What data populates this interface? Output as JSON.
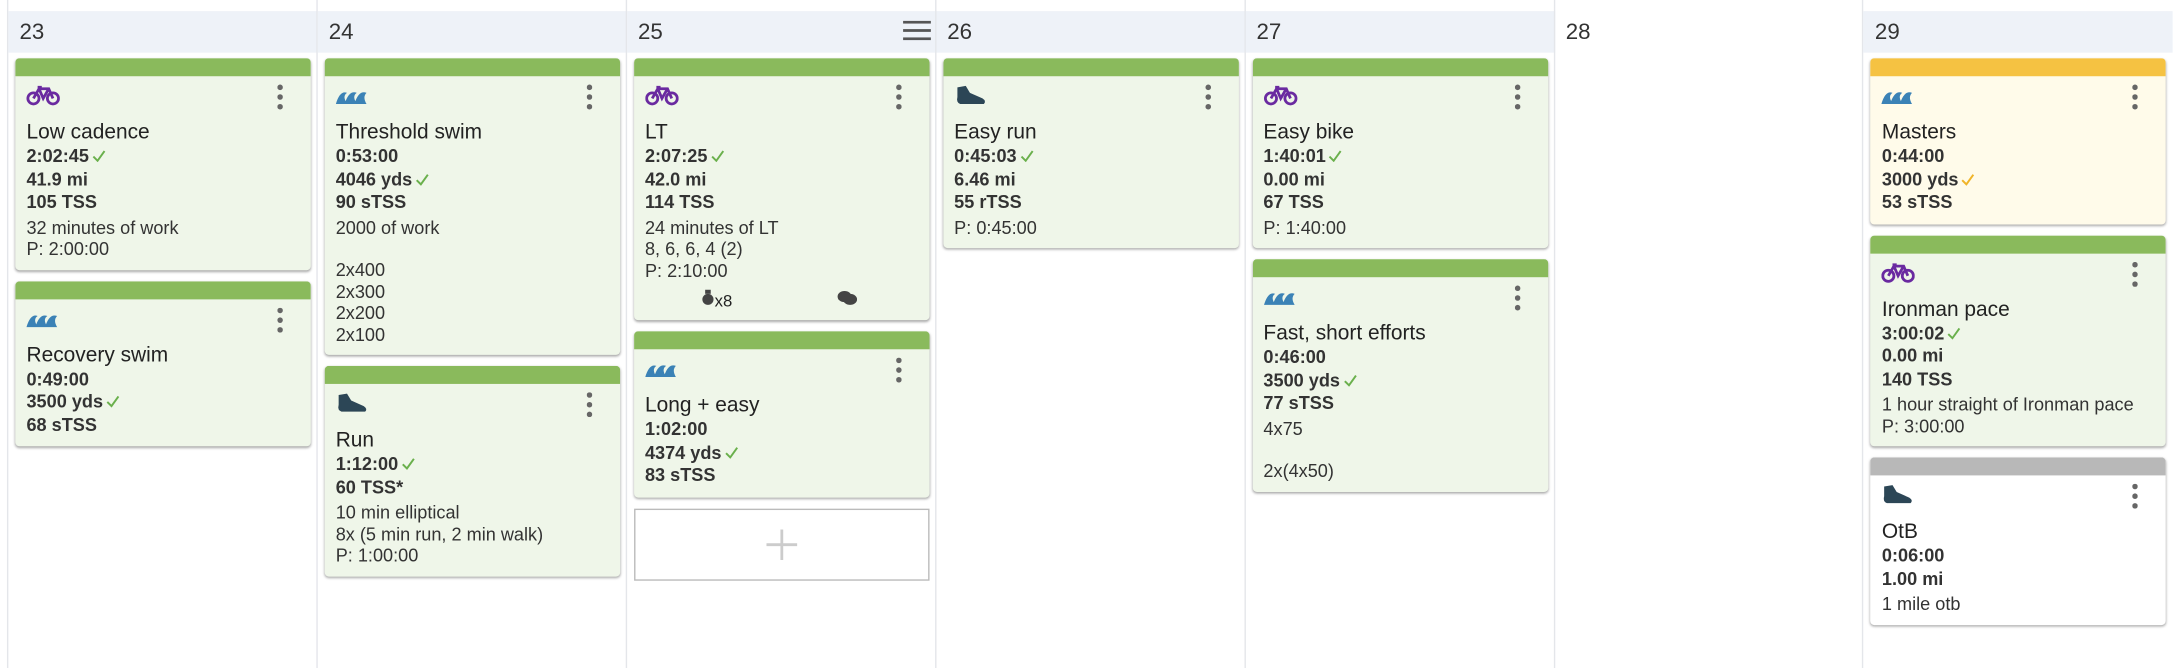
{
  "days": [
    {
      "date": "23",
      "workouts": [
        {
          "icon": "bike",
          "bar": "#8aba5c",
          "bg": "#eff6e9",
          "title": "Low cadence",
          "stats": [
            {
              "text": "2:02:45",
              "check": "#6ab04c"
            },
            {
              "text": "41.9 mi"
            },
            {
              "text": "105 TSS"
            }
          ],
          "notes": [
            [
              "32 minutes of work",
              "P: 2:00:00"
            ]
          ]
        },
        {
          "icon": "swim",
          "bar": "#8aba5c",
          "bg": "#eff6e9",
          "title": "Recovery swim",
          "stats": [
            {
              "text": "0:49:00"
            },
            {
              "text": "3500 yds",
              "check": "#6ab04c"
            },
            {
              "text": "68 sTSS"
            }
          ],
          "notes": []
        }
      ]
    },
    {
      "date": "24",
      "workouts": [
        {
          "icon": "swim",
          "bar": "#8aba5c",
          "bg": "#eff6e9",
          "title": "Threshold swim",
          "stats": [
            {
              "text": "0:53:00"
            },
            {
              "text": "4046 yds",
              "check": "#6ab04c"
            },
            {
              "text": "90 sTSS"
            }
          ],
          "notes": [
            [
              "2000 of work"
            ],
            [
              "2x400",
              "2x300",
              "2x200",
              "2x100"
            ]
          ]
        },
        {
          "icon": "run",
          "bar": "#8aba5c",
          "bg": "#eff6e9",
          "title": "Run",
          "stats": [
            {
              "text": "1:12:00",
              "check": "#6ab04c"
            },
            {
              "text": "60 TSS*"
            }
          ],
          "notes": [
            [
              "10 min elliptical",
              "8x (5 min run, 2 min walk)",
              "P: 1:00:00"
            ]
          ]
        }
      ]
    },
    {
      "date": "25",
      "menu": true,
      "add_slot": true,
      "workouts": [
        {
          "icon": "bike",
          "bar": "#8aba5c",
          "bg": "#eff6e9",
          "title": "LT",
          "stats": [
            {
              "text": "2:07:25",
              "check": "#6ab04c"
            },
            {
              "text": "42.0 mi"
            },
            {
              "text": "114 TSS"
            }
          ],
          "notes": [
            [
              "24 minutes of LT",
              "8, 6, 6, 4 (2)",
              "P: 2:10:00"
            ]
          ],
          "badge": "x8",
          "comments": true
        },
        {
          "icon": "swim",
          "bar": "#8aba5c",
          "bg": "#eff6e9",
          "title": "Long + easy",
          "stats": [
            {
              "text": "1:02:00"
            },
            {
              "text": "4374 yds",
              "check": "#6ab04c"
            },
            {
              "text": "83 sTSS"
            }
          ],
          "notes": []
        }
      ]
    },
    {
      "date": "26",
      "workouts": [
        {
          "icon": "run",
          "bar": "#8aba5c",
          "bg": "#eff6e9",
          "title": "Easy run",
          "stats": [
            {
              "text": "0:45:03",
              "check": "#6ab04c"
            },
            {
              "text": "6.46 mi"
            },
            {
              "text": "55 rTSS"
            }
          ],
          "notes": [
            [
              "P: 0:45:00"
            ]
          ]
        }
      ]
    },
    {
      "date": "27",
      "workouts": [
        {
          "icon": "bike",
          "bar": "#8aba5c",
          "bg": "#eff6e9",
          "title": "Easy bike",
          "stats": [
            {
              "text": "1:40:01",
              "check": "#6ab04c"
            },
            {
              "text": "0.00 mi"
            },
            {
              "text": "67 TSS"
            }
          ],
          "notes": [
            [
              "P: 1:40:00"
            ]
          ]
        },
        {
          "icon": "swim",
          "bar": "#8aba5c",
          "bg": "#eff6e9",
          "title": "Fast, short efforts",
          "stats": [
            {
              "text": "0:46:00"
            },
            {
              "text": "3500 yds",
              "check": "#6ab04c"
            },
            {
              "text": "77 sTSS"
            }
          ],
          "notes": [
            [
              "4x75"
            ],
            [
              "2x(4x50)"
            ]
          ]
        }
      ]
    },
    {
      "date": "28",
      "shaded": false,
      "workouts": []
    },
    {
      "date": "29",
      "workouts": [
        {
          "icon": "swim",
          "bar": "#f5c242",
          "bg": "#fffbea",
          "title": "Masters",
          "stats": [
            {
              "text": "0:44:00"
            },
            {
              "text": "3000 yds",
              "check": "#f0b429"
            },
            {
              "text": "53 sTSS"
            }
          ],
          "notes": []
        },
        {
          "icon": "bike",
          "bar": "#8aba5c",
          "bg": "#eff6e9",
          "title": "Ironman pace",
          "stats": [
            {
              "text": "3:00:02",
              "check": "#6ab04c"
            },
            {
              "text": "0.00 mi"
            },
            {
              "text": "140 TSS"
            }
          ],
          "notes": [
            [
              "1 hour straight of Ironman pace",
              "P: 3:00:00"
            ]
          ]
        },
        {
          "icon": "run",
          "bar": "#b8b8b8",
          "bg": "#ffffff",
          "title": "OtB",
          "stats": [
            {
              "text": "0:06:00"
            },
            {
              "text": "1.00 mi"
            }
          ],
          "notes": [
            [
              "1 mile otb"
            ]
          ]
        }
      ]
    }
  ]
}
